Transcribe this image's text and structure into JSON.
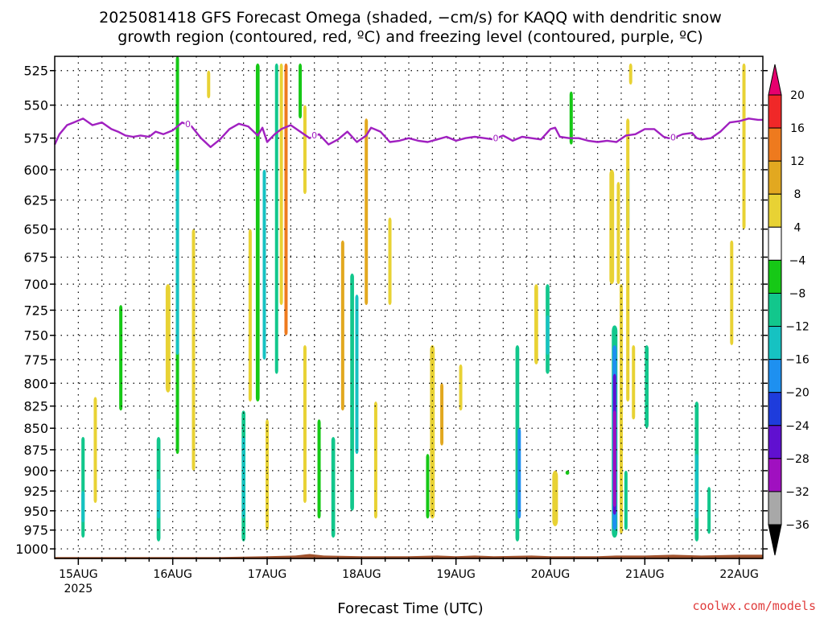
{
  "chart_data": {
    "type": "heatmap",
    "title_line1": "2025081418 GFS Forecast Omega (shaded, −cm/s) for KAQQ with dendritic snow",
    "title_line2": "growth region (contoured, red, ºC) and freezing level (contoured, purple, ºC)",
    "xlabel": "Forecast Time (UTC)",
    "ylabel": "",
    "credit": "coolwx.com/models",
    "x_ticks": [
      {
        "day": 15,
        "label": "15AUG",
        "sublabel": "2025"
      },
      {
        "day": 16,
        "label": "16AUG",
        "sublabel": ""
      },
      {
        "day": 17,
        "label": "17AUG",
        "sublabel": ""
      },
      {
        "day": 18,
        "label": "18AUG",
        "sublabel": ""
      },
      {
        "day": 19,
        "label": "19AUG",
        "sublabel": ""
      },
      {
        "day": 20,
        "label": "20AUG",
        "sublabel": ""
      },
      {
        "day": 21,
        "label": "21AUG",
        "sublabel": ""
      },
      {
        "day": 22,
        "label": "22AUG",
        "sublabel": ""
      }
    ],
    "xlim_days": [
      14.75,
      22.25
    ],
    "y_ticks": [
      525,
      550,
      575,
      600,
      625,
      650,
      675,
      700,
      725,
      750,
      775,
      800,
      825,
      850,
      875,
      900,
      925,
      950,
      975,
      1000
    ],
    "ylim_hpa": [
      1013,
      515
    ],
    "y_scale": "log",
    "grid": true,
    "colorbar": {
      "labels": [
        "20",
        "16",
        "12",
        "8",
        "4",
        "−4",
        "−8",
        "−12",
        "−16",
        "−20",
        "−24",
        "−28",
        "−32",
        "−36"
      ],
      "colors": [
        "#e6006e",
        "#f02828",
        "#ee7a1e",
        "#e2a820",
        "#e8d234",
        "#ffffff",
        "#16c816",
        "#12c78c",
        "#16c2c2",
        "#1e90f0",
        "#1e3cdc",
        "#6010d0",
        "#a010c0",
        "#a8a8a8",
        "#000000"
      ]
    },
    "freezing_level": {
      "color": "#a020c0",
      "label": "0",
      "label_days": [
        16.16,
        17.5,
        19.42,
        21.3
      ],
      "days": [
        14.75,
        14.8,
        14.88,
        14.95,
        15.05,
        15.15,
        15.25,
        15.35,
        15.42,
        15.5,
        15.58,
        15.66,
        15.75,
        15.82,
        15.9,
        16.0,
        16.1,
        16.2,
        16.3,
        16.4,
        16.5,
        16.6,
        16.7,
        16.8,
        16.9,
        16.95,
        17.0,
        17.08,
        17.15,
        17.25,
        17.35,
        17.45,
        17.55,
        17.65,
        17.75,
        17.85,
        17.95,
        18.05,
        18.1,
        18.2,
        18.3,
        18.4,
        18.5,
        18.6,
        18.7,
        18.8,
        18.9,
        19.0,
        19.1,
        19.2,
        19.3,
        19.4,
        19.5,
        19.6,
        19.7,
        19.8,
        19.9,
        20.0,
        20.05,
        20.1,
        20.2,
        20.3,
        20.4,
        20.5,
        20.6,
        20.7,
        20.8,
        20.9,
        21.0,
        21.1,
        21.2,
        21.25,
        21.3,
        21.4,
        21.5,
        21.55,
        21.6,
        21.7,
        21.8,
        21.9,
        22.0,
        22.1,
        22.2,
        22.25
      ],
      "hpa": [
        580,
        572,
        565,
        563,
        560,
        565,
        563,
        568,
        570,
        573,
        574,
        573,
        574,
        570,
        572,
        569,
        563,
        566,
        575,
        582,
        576,
        568,
        564,
        566,
        573,
        567,
        578,
        572,
        568,
        565,
        570,
        575,
        572,
        580,
        576,
        570,
        578,
        573,
        567,
        570,
        578,
        577,
        575,
        577,
        578,
        576,
        574,
        577,
        575,
        574,
        575,
        576,
        573,
        577,
        574,
        575,
        576,
        568,
        567,
        574,
        575,
        575,
        577,
        578,
        577,
        578,
        573,
        572,
        568,
        568,
        574,
        575,
        575,
        572,
        571,
        575,
        576,
        575,
        570,
        563,
        562,
        560,
        561,
        561
      ]
    },
    "terrain": {
      "color": "#a0522d",
      "days": [
        14.75,
        15.5,
        16.0,
        16.5,
        17.0,
        17.3,
        17.45,
        17.6,
        18.0,
        18.5,
        18.8,
        19.0,
        19.2,
        19.4,
        19.8,
        20.0,
        20.3,
        20.5,
        20.7,
        21.0,
        21.3,
        21.6,
        22.0,
        22.25
      ],
      "top_hpa": [
        1011,
        1011,
        1011,
        1011,
        1010,
        1009,
        1007,
        1009,
        1010,
        1010,
        1009,
        1010,
        1009,
        1010,
        1009,
        1010,
        1010,
        1010,
        1009,
        1009,
        1008,
        1009,
        1008,
        1008
      ],
      "bottom_hpa": 1014
    },
    "omega_regions": [
      {
        "day": 15.05,
        "p_top": 860,
        "p_bot": 985,
        "w": 0.035,
        "level": "-8"
      },
      {
        "day": 15.05,
        "p_top": 925,
        "p_bot": 965,
        "w": 0.02,
        "level": "-12"
      },
      {
        "day": 15.18,
        "p_top": 815,
        "p_bot": 940,
        "w": 0.03,
        "level": "4"
      },
      {
        "day": 15.45,
        "p_top": 720,
        "p_bot": 830,
        "w": 0.012,
        "level": "-4"
      },
      {
        "day": 15.85,
        "p_top": 860,
        "p_bot": 990,
        "w": 0.04,
        "level": "-8"
      },
      {
        "day": 15.85,
        "p_top": 910,
        "p_bot": 960,
        "w": 0.02,
        "level": "-12"
      },
      {
        "day": 15.95,
        "p_top": 700,
        "p_bot": 810,
        "w": 0.05,
        "level": "4"
      },
      {
        "day": 16.05,
        "p_top": 515,
        "p_bot": 880,
        "w": 0.015,
        "level": "-4"
      },
      {
        "day": 16.05,
        "p_top": 600,
        "p_bot": 770,
        "w": 0.008,
        "level": "-12"
      },
      {
        "day": 16.22,
        "p_top": 650,
        "p_bot": 900,
        "w": 0.01,
        "level": "4"
      },
      {
        "day": 16.38,
        "p_top": 525,
        "p_bot": 545,
        "w": 0.008,
        "level": "4"
      },
      {
        "day": 16.75,
        "p_top": 830,
        "p_bot": 990,
        "w": 0.04,
        "level": "-8"
      },
      {
        "day": 16.75,
        "p_top": 860,
        "p_bot": 960,
        "w": 0.02,
        "level": "-12"
      },
      {
        "day": 16.82,
        "p_top": 650,
        "p_bot": 820,
        "w": 0.02,
        "level": "4"
      },
      {
        "day": 16.9,
        "p_top": 520,
        "p_bot": 820,
        "w": 0.04,
        "level": "-4"
      },
      {
        "day": 16.97,
        "p_top": 600,
        "p_bot": 775,
        "w": 0.02,
        "level": "-12"
      },
      {
        "day": 17.0,
        "p_top": 840,
        "p_bot": 975,
        "w": 0.02,
        "level": "4"
      },
      {
        "day": 17.1,
        "p_top": 520,
        "p_bot": 790,
        "w": 0.025,
        "level": "-8"
      },
      {
        "day": 17.15,
        "p_top": 520,
        "p_bot": 720,
        "w": 0.03,
        "level": "4"
      },
      {
        "day": 17.2,
        "p_top": 520,
        "p_bot": 750,
        "w": 0.03,
        "level": "12"
      },
      {
        "day": 17.35,
        "p_top": 520,
        "p_bot": 560,
        "w": 0.015,
        "level": "-4"
      },
      {
        "day": 17.4,
        "p_top": 550,
        "p_bot": 620,
        "w": 0.02,
        "level": "4"
      },
      {
        "day": 17.4,
        "p_top": 760,
        "p_bot": 940,
        "w": 0.025,
        "level": "4"
      },
      {
        "day": 17.55,
        "p_top": 840,
        "p_bot": 960,
        "w": 0.015,
        "level": "-4"
      },
      {
        "day": 17.7,
        "p_top": 860,
        "p_bot": 985,
        "w": 0.04,
        "level": "-8"
      },
      {
        "day": 17.8,
        "p_top": 660,
        "p_bot": 830,
        "w": 0.03,
        "level": "8"
      },
      {
        "day": 17.9,
        "p_top": 690,
        "p_bot": 950,
        "w": 0.04,
        "level": "-8"
      },
      {
        "day": 17.95,
        "p_top": 710,
        "p_bot": 880,
        "w": 0.02,
        "level": "-12"
      },
      {
        "day": 18.05,
        "p_top": 560,
        "p_bot": 720,
        "w": 0.03,
        "level": "8"
      },
      {
        "day": 18.15,
        "p_top": 820,
        "p_bot": 960,
        "w": 0.02,
        "level": "4"
      },
      {
        "day": 18.3,
        "p_top": 640,
        "p_bot": 720,
        "w": 0.02,
        "level": "4"
      },
      {
        "day": 18.75,
        "p_top": 760,
        "p_bot": 960,
        "w": 0.05,
        "level": "4"
      },
      {
        "day": 18.85,
        "p_top": 800,
        "p_bot": 870,
        "w": 0.02,
        "level": "8"
      },
      {
        "day": 18.7,
        "p_top": 880,
        "p_bot": 960,
        "w": 0.02,
        "level": "-4"
      },
      {
        "day": 19.05,
        "p_top": 780,
        "p_bot": 830,
        "w": 0.015,
        "level": "4"
      },
      {
        "day": 19.65,
        "p_top": 760,
        "p_bot": 990,
        "w": 0.04,
        "level": "-8"
      },
      {
        "day": 19.67,
        "p_top": 850,
        "p_bot": 960,
        "w": 0.02,
        "level": "-16"
      },
      {
        "day": 19.85,
        "p_top": 700,
        "p_bot": 780,
        "w": 0.04,
        "level": "4"
      },
      {
        "day": 19.97,
        "p_top": 700,
        "p_bot": 790,
        "w": 0.04,
        "level": "-8"
      },
      {
        "day": 19.97,
        "p_top": 730,
        "p_bot": 770,
        "w": 0.03,
        "level": "-12"
      },
      {
        "day": 20.05,
        "p_top": 900,
        "p_bot": 970,
        "w": 0.06,
        "level": "4"
      },
      {
        "day": 20.18,
        "p_top": 900,
        "p_bot": 905,
        "w": 0.04,
        "level": "-4"
      },
      {
        "day": 20.22,
        "p_top": 540,
        "p_bot": 580,
        "w": 0.03,
        "level": "-4"
      },
      {
        "day": 20.65,
        "p_top": 600,
        "p_bot": 700,
        "w": 0.05,
        "level": "4"
      },
      {
        "day": 20.72,
        "p_top": 610,
        "p_bot": 700,
        "w": 0.03,
        "level": "4"
      },
      {
        "day": 20.68,
        "p_top": 740,
        "p_bot": 985,
        "w": 0.06,
        "level": "-8"
      },
      {
        "day": 20.68,
        "p_top": 760,
        "p_bot": 975,
        "w": 0.045,
        "level": "-16"
      },
      {
        "day": 20.68,
        "p_top": 790,
        "p_bot": 955,
        "w": 0.03,
        "level": "-24"
      },
      {
        "day": 20.68,
        "p_top": 830,
        "p_bot": 945,
        "w": 0.02,
        "level": "-28"
      },
      {
        "day": 20.75,
        "p_top": 700,
        "p_bot": 980,
        "w": 0.03,
        "level": "4"
      },
      {
        "day": 20.82,
        "p_top": 600,
        "p_bot": 650,
        "w": 0.035,
        "level": "-8"
      },
      {
        "day": 20.82,
        "p_top": 560,
        "p_bot": 820,
        "w": 0.035,
        "level": "4"
      },
      {
        "day": 20.8,
        "p_top": 900,
        "p_bot": 975,
        "w": 0.03,
        "level": "-8"
      },
      {
        "day": 20.88,
        "p_top": 760,
        "p_bot": 840,
        "w": 0.03,
        "level": "4"
      },
      {
        "day": 21.02,
        "p_top": 760,
        "p_bot": 850,
        "w": 0.04,
        "level": "-8"
      },
      {
        "day": 21.55,
        "p_top": 820,
        "p_bot": 990,
        "w": 0.04,
        "level": "-8"
      },
      {
        "day": 21.55,
        "p_top": 880,
        "p_bot": 960,
        "w": 0.02,
        "level": "-12"
      },
      {
        "day": 21.68,
        "p_top": 920,
        "p_bot": 980,
        "w": 0.02,
        "level": "-8"
      },
      {
        "day": 21.92,
        "p_top": 660,
        "p_bot": 760,
        "w": 0.02,
        "level": "4"
      },
      {
        "day": 22.05,
        "p_top": 520,
        "p_bot": 650,
        "w": 0.025,
        "level": "4"
      },
      {
        "day": 20.85,
        "p_top": 520,
        "p_bot": 535,
        "w": 0.03,
        "level": "4"
      }
    ]
  }
}
